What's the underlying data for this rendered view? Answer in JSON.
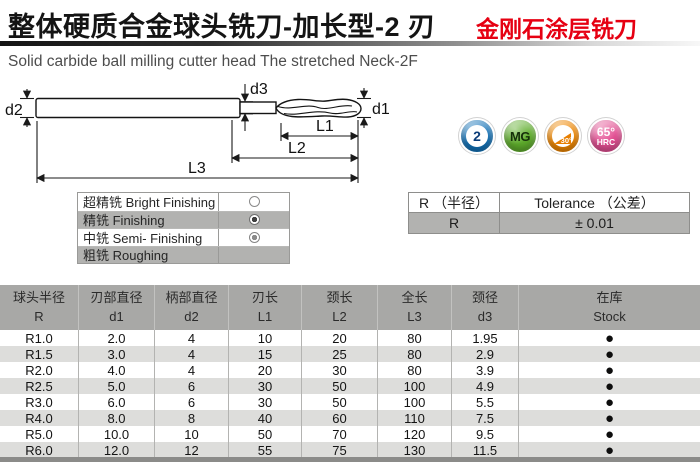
{
  "header": {
    "title_zh": "整体硬质合金球头铣刀-加长型-2 刃",
    "coating_title_zh": "金刚石涂层铣刀",
    "subtitle_en": "Solid carbide ball milling cutter head  The stretched Neck-2F",
    "accent_red": "#e60012"
  },
  "diagram": {
    "labels": {
      "d1": "d1",
      "d2": "d2",
      "d3": "d3",
      "L1": "L1",
      "L2": "L2",
      "L3": "L3"
    }
  },
  "badges": [
    {
      "type": "flutes",
      "label": "2",
      "color": "#1272b8"
    },
    {
      "type": "material",
      "label": "MG",
      "color": "#5fae2c"
    },
    {
      "type": "angle",
      "label": "30°",
      "color": "#f08700"
    },
    {
      "type": "hardness",
      "label": "65°",
      "label2": "HRC",
      "color": "#e44f93"
    }
  ],
  "finishing_table": {
    "rows": [
      {
        "label": "超精铣 Bright Finishing",
        "mark": "open-circle"
      },
      {
        "label": "精铣 Finishing",
        "mark": "double-circle-dark"
      },
      {
        "label": "中铣 Semi- Finishing",
        "mark": "double-circle"
      },
      {
        "label": "粗铣 Roughing",
        "mark": ""
      }
    ]
  },
  "tolerance_table": {
    "headers": [
      "R （半径）",
      "Tolerance （公差）"
    ],
    "rows": [
      [
        "R",
        "± 0.01"
      ]
    ]
  },
  "spec_table": {
    "columns": [
      {
        "zh": "球头半径",
        "code": "R"
      },
      {
        "zh": "刃部直径",
        "code": "d1"
      },
      {
        "zh": "柄部直径",
        "code": "d2"
      },
      {
        "zh": "刃长",
        "code": "L1"
      },
      {
        "zh": "颈长",
        "code": "L2"
      },
      {
        "zh": "全长",
        "code": "L3"
      },
      {
        "zh": "颈径",
        "code": "d3"
      },
      {
        "zh": "在库",
        "code": "Stock"
      }
    ],
    "rows": [
      [
        "R1.0",
        "2.0",
        "4",
        "10",
        "20",
        "80",
        "1.95",
        "●"
      ],
      [
        "R1.5",
        "3.0",
        "4",
        "15",
        "25",
        "80",
        "2.9",
        "●"
      ],
      [
        "R2.0",
        "4.0",
        "4",
        "20",
        "30",
        "80",
        "3.9",
        "●"
      ],
      [
        "R2.5",
        "5.0",
        "6",
        "30",
        "50",
        "100",
        "4.9",
        "●"
      ],
      [
        "R3.0",
        "6.0",
        "6",
        "30",
        "50",
        "100",
        "5.5",
        "●"
      ],
      [
        "R4.0",
        "8.0",
        "8",
        "40",
        "60",
        "110",
        "7.5",
        "●"
      ],
      [
        "R5.0",
        "10.0",
        "10",
        "50",
        "70",
        "120",
        "9.5",
        "●"
      ],
      [
        "R6.0",
        "12.0",
        "12",
        "55",
        "75",
        "130",
        "11.5",
        "●"
      ]
    ]
  }
}
